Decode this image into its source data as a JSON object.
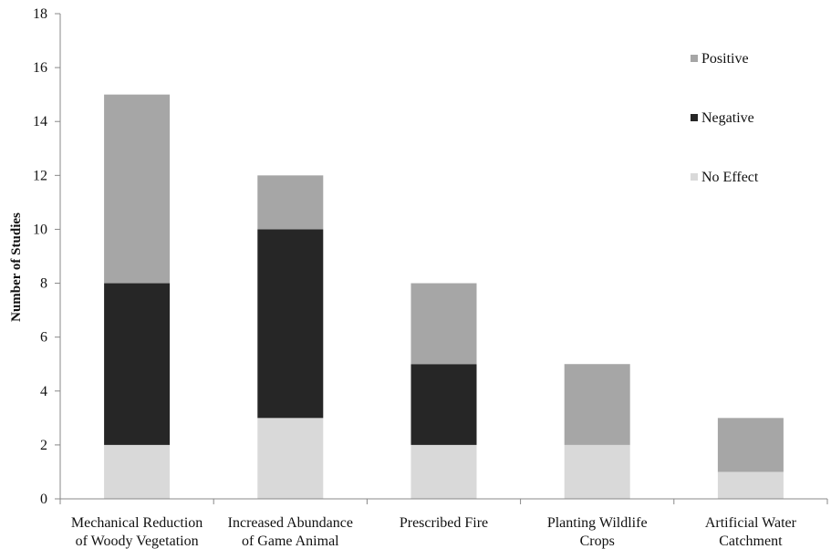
{
  "chart_data": {
    "type": "bar",
    "stacked": true,
    "categories": [
      [
        "Mechanical Reduction",
        "of Woody Vegetation"
      ],
      [
        "Increased Abundance",
        "of Game Animal"
      ],
      [
        "Prescribed Fire"
      ],
      [
        "Planting Wildlife",
        "Crops"
      ],
      [
        "Artificial Water",
        "Catchment"
      ]
    ],
    "series": [
      {
        "name": "No Effect",
        "color": "#d9d9d9",
        "values": [
          2,
          3,
          2,
          2,
          1
        ]
      },
      {
        "name": "Negative",
        "color": "#262626",
        "values": [
          6,
          7,
          3,
          0,
          0
        ]
      },
      {
        "name": "Positive",
        "color": "#a6a6a6",
        "values": [
          7,
          2,
          3,
          3,
          2
        ]
      }
    ],
    "legend_order": [
      "Positive",
      "Negative",
      "No Effect"
    ],
    "legend_position": "top-right",
    "ylabel": "Number of Studies",
    "xlabel": "",
    "ylim": [
      0,
      18
    ],
    "yticks": [
      0,
      2,
      4,
      6,
      8,
      10,
      12,
      14,
      16,
      18
    ],
    "grid": false
  }
}
